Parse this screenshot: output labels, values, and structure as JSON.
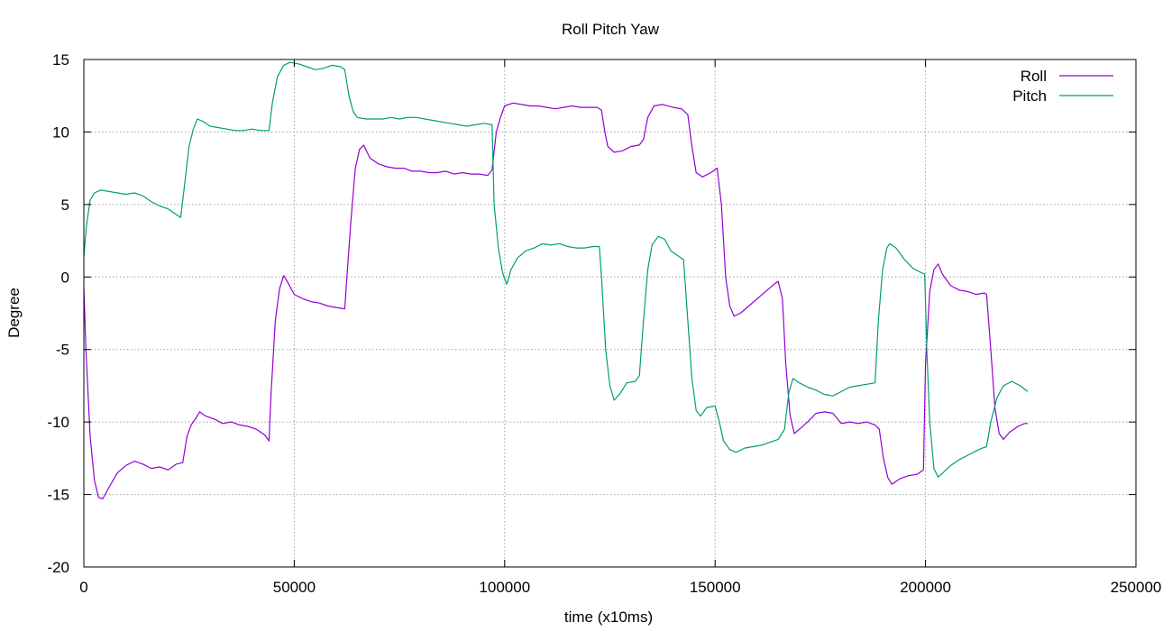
{
  "chart_data": {
    "type": "line",
    "title": "Roll Pitch Yaw",
    "xlabel": "time (x10ms)",
    "ylabel": "Degree",
    "xlim": [
      0,
      250000
    ],
    "ylim": [
      -20,
      15
    ],
    "x_ticks": [
      0,
      50000,
      100000,
      150000,
      200000,
      250000
    ],
    "y_ticks": [
      -20,
      -15,
      -10,
      -5,
      0,
      5,
      10,
      15
    ],
    "grid": true,
    "legend": "top-right",
    "series": [
      {
        "name": "Roll",
        "color": "#9400d3",
        "points": [
          [
            0,
            -0.8
          ],
          [
            500,
            -5
          ],
          [
            1500,
            -11
          ],
          [
            2500,
            -14
          ],
          [
            3500,
            -15.2
          ],
          [
            4500,
            -15.3
          ],
          [
            6000,
            -14.5
          ],
          [
            8000,
            -13.5
          ],
          [
            10000,
            -13.0
          ],
          [
            12000,
            -12.7
          ],
          [
            14000,
            -12.9
          ],
          [
            16000,
            -13.2
          ],
          [
            18000,
            -13.1
          ],
          [
            20000,
            -13.3
          ],
          [
            22000,
            -12.9
          ],
          [
            23500,
            -12.8
          ],
          [
            24500,
            -11.0
          ],
          [
            25500,
            -10.2
          ],
          [
            26500,
            -9.8
          ],
          [
            27500,
            -9.3
          ],
          [
            29000,
            -9.6
          ],
          [
            31000,
            -9.8
          ],
          [
            33000,
            -10.1
          ],
          [
            35000,
            -10.0
          ],
          [
            37000,
            -10.2
          ],
          [
            39000,
            -10.3
          ],
          [
            41000,
            -10.5
          ],
          [
            43000,
            -10.9
          ],
          [
            44000,
            -11.3
          ],
          [
            44500,
            -8
          ],
          [
            45500,
            -3
          ],
          [
            46500,
            -0.8
          ],
          [
            47500,
            0.1
          ],
          [
            48500,
            -0.4
          ],
          [
            50000,
            -1.2
          ],
          [
            52000,
            -1.5
          ],
          [
            54000,
            -1.7
          ],
          [
            56000,
            -1.8
          ],
          [
            58000,
            -2.0
          ],
          [
            60000,
            -2.1
          ],
          [
            62000,
            -2.2
          ],
          [
            62500,
            0
          ],
          [
            63500,
            4
          ],
          [
            64500,
            7.5
          ],
          [
            65500,
            8.8
          ],
          [
            66500,
            9.1
          ],
          [
            68000,
            8.2
          ],
          [
            70000,
            7.8
          ],
          [
            72000,
            7.6
          ],
          [
            74000,
            7.5
          ],
          [
            76000,
            7.5
          ],
          [
            78000,
            7.3
          ],
          [
            80000,
            7.3
          ],
          [
            82000,
            7.2
          ],
          [
            84000,
            7.2
          ],
          [
            86000,
            7.3
          ],
          [
            88000,
            7.1
          ],
          [
            90000,
            7.2
          ],
          [
            92000,
            7.1
          ],
          [
            94000,
            7.1
          ],
          [
            96000,
            7.0
          ],
          [
            97000,
            7.4
          ],
          [
            98000,
            10.0
          ],
          [
            99000,
            11.0
          ],
          [
            100000,
            11.8
          ],
          [
            102000,
            12.0
          ],
          [
            104000,
            11.9
          ],
          [
            106000,
            11.8
          ],
          [
            108000,
            11.8
          ],
          [
            110000,
            11.7
          ],
          [
            112000,
            11.6
          ],
          [
            114000,
            11.7
          ],
          [
            116000,
            11.8
          ],
          [
            118000,
            11.7
          ],
          [
            120000,
            11.7
          ],
          [
            122000,
            11.7
          ],
          [
            123000,
            11.5
          ],
          [
            123800,
            10.0
          ],
          [
            124500,
            9.0
          ],
          [
            126000,
            8.6
          ],
          [
            128000,
            8.7
          ],
          [
            130000,
            9.0
          ],
          [
            132000,
            9.1
          ],
          [
            133000,
            9.5
          ],
          [
            134000,
            11.0
          ],
          [
            135500,
            11.8
          ],
          [
            137500,
            11.9
          ],
          [
            140000,
            11.7
          ],
          [
            142000,
            11.6
          ],
          [
            143500,
            11.2
          ],
          [
            144500,
            9.0
          ],
          [
            145500,
            7.2
          ],
          [
            147000,
            6.9
          ],
          [
            149000,
            7.2
          ],
          [
            150500,
            7.5
          ],
          [
            151500,
            5
          ],
          [
            152500,
            0
          ],
          [
            153500,
            -2
          ],
          [
            154500,
            -2.7
          ],
          [
            156000,
            -2.5
          ],
          [
            158000,
            -2.0
          ],
          [
            160000,
            -1.5
          ],
          [
            162000,
            -1.0
          ],
          [
            164000,
            -0.5
          ],
          [
            165000,
            -0.3
          ],
          [
            166000,
            -1.5
          ],
          [
            166800,
            -6
          ],
          [
            167800,
            -9.5
          ],
          [
            168800,
            -10.8
          ],
          [
            170000,
            -10.5
          ],
          [
            172000,
            -10.0
          ],
          [
            174000,
            -9.4
          ],
          [
            176000,
            -9.3
          ],
          [
            178000,
            -9.4
          ],
          [
            180000,
            -10.1
          ],
          [
            182000,
            -10.0
          ],
          [
            184000,
            -10.1
          ],
          [
            186000,
            -10.0
          ],
          [
            188000,
            -10.2
          ],
          [
            189000,
            -10.5
          ],
          [
            190000,
            -12.5
          ],
          [
            191000,
            -13.8
          ],
          [
            192000,
            -14.3
          ],
          [
            194000,
            -13.9
          ],
          [
            196000,
            -13.7
          ],
          [
            198000,
            -13.6
          ],
          [
            199500,
            -13.3
          ],
          [
            200000,
            -6
          ],
          [
            201000,
            -1
          ],
          [
            202000,
            0.5
          ],
          [
            203000,
            0.9
          ],
          [
            204000,
            0.2
          ],
          [
            206000,
            -0.6
          ],
          [
            208000,
            -0.9
          ],
          [
            210000,
            -1.0
          ],
          [
            212000,
            -1.2
          ],
          [
            214000,
            -1.1
          ],
          [
            214500,
            -1.2
          ],
          [
            215500,
            -5
          ],
          [
            216500,
            -9
          ],
          [
            217500,
            -10.8
          ],
          [
            218500,
            -11.2
          ],
          [
            220000,
            -10.7
          ],
          [
            222000,
            -10.3
          ],
          [
            223500,
            -10.1
          ],
          [
            224300,
            -10.1
          ]
        ]
      },
      {
        "name": "Pitch",
        "color": "#009e73",
        "points": [
          [
            0,
            1.4
          ],
          [
            600,
            3.5
          ],
          [
            1500,
            5.3
          ],
          [
            2500,
            5.8
          ],
          [
            4000,
            6.0
          ],
          [
            6000,
            5.9
          ],
          [
            8000,
            5.8
          ],
          [
            10000,
            5.7
          ],
          [
            12000,
            5.8
          ],
          [
            14000,
            5.6
          ],
          [
            16000,
            5.2
          ],
          [
            18000,
            4.9
          ],
          [
            20000,
            4.7
          ],
          [
            22000,
            4.3
          ],
          [
            23000,
            4.1
          ],
          [
            24000,
            6.5
          ],
          [
            25000,
            9.0
          ],
          [
            26000,
            10.2
          ],
          [
            27000,
            10.9
          ],
          [
            28500,
            10.7
          ],
          [
            30000,
            10.4
          ],
          [
            32000,
            10.3
          ],
          [
            34000,
            10.2
          ],
          [
            36000,
            10.1
          ],
          [
            38000,
            10.1
          ],
          [
            40000,
            10.2
          ],
          [
            42000,
            10.1
          ],
          [
            44000,
            10.1
          ],
          [
            44800,
            12.0
          ],
          [
            46000,
            13.8
          ],
          [
            47500,
            14.6
          ],
          [
            49000,
            14.8
          ],
          [
            51000,
            14.7
          ],
          [
            53000,
            14.5
          ],
          [
            55000,
            14.3
          ],
          [
            57000,
            14.4
          ],
          [
            59000,
            14.6
          ],
          [
            61000,
            14.5
          ],
          [
            62000,
            14.3
          ],
          [
            63000,
            12.5
          ],
          [
            64000,
            11.4
          ],
          [
            65000,
            11.0
          ],
          [
            67000,
            10.9
          ],
          [
            69000,
            10.9
          ],
          [
            71000,
            10.9
          ],
          [
            73000,
            11.0
          ],
          [
            75000,
            10.9
          ],
          [
            77000,
            11.0
          ],
          [
            79000,
            11.0
          ],
          [
            81000,
            10.9
          ],
          [
            83000,
            10.8
          ],
          [
            85000,
            10.7
          ],
          [
            87000,
            10.6
          ],
          [
            89000,
            10.5
          ],
          [
            91000,
            10.4
          ],
          [
            93000,
            10.5
          ],
          [
            95000,
            10.6
          ],
          [
            97000,
            10.5
          ],
          [
            97500,
            5
          ],
          [
            98500,
            2.0
          ],
          [
            99500,
            0.3
          ],
          [
            100500,
            -0.5
          ],
          [
            101500,
            0.5
          ],
          [
            103000,
            1.3
          ],
          [
            105000,
            1.8
          ],
          [
            107000,
            2.0
          ],
          [
            109000,
            2.3
          ],
          [
            111000,
            2.2
          ],
          [
            113000,
            2.3
          ],
          [
            115000,
            2.1
          ],
          [
            117000,
            2.0
          ],
          [
            119000,
            2.0
          ],
          [
            121000,
            2.1
          ],
          [
            122500,
            2.1
          ],
          [
            123000,
            0
          ],
          [
            124000,
            -5
          ],
          [
            125000,
            -7.5
          ],
          [
            126000,
            -8.5
          ],
          [
            127500,
            -8.0
          ],
          [
            129000,
            -7.3
          ],
          [
            131000,
            -7.2
          ],
          [
            132000,
            -6.8
          ],
          [
            133000,
            -3
          ],
          [
            134000,
            0.5
          ],
          [
            135000,
            2.2
          ],
          [
            136500,
            2.8
          ],
          [
            138000,
            2.6
          ],
          [
            139500,
            1.8
          ],
          [
            141000,
            1.5
          ],
          [
            142500,
            1.2
          ],
          [
            143500,
            -3
          ],
          [
            144500,
            -7
          ],
          [
            145500,
            -9.2
          ],
          [
            146500,
            -9.6
          ],
          [
            148000,
            -9.0
          ],
          [
            150000,
            -8.9
          ],
          [
            151000,
            -10.0
          ],
          [
            152000,
            -11.3
          ],
          [
            153500,
            -11.9
          ],
          [
            155000,
            -12.1
          ],
          [
            157000,
            -11.8
          ],
          [
            159000,
            -11.7
          ],
          [
            161000,
            -11.6
          ],
          [
            163000,
            -11.4
          ],
          [
            165000,
            -11.2
          ],
          [
            166500,
            -10.5
          ],
          [
            167500,
            -8.0
          ],
          [
            168500,
            -7.0
          ],
          [
            170000,
            -7.3
          ],
          [
            172000,
            -7.6
          ],
          [
            174000,
            -7.8
          ],
          [
            176000,
            -8.1
          ],
          [
            178000,
            -8.2
          ],
          [
            180000,
            -7.9
          ],
          [
            182000,
            -7.6
          ],
          [
            184000,
            -7.5
          ],
          [
            186000,
            -7.4
          ],
          [
            188000,
            -7.3
          ],
          [
            188800,
            -3
          ],
          [
            189800,
            0.5
          ],
          [
            190800,
            2.0
          ],
          [
            191500,
            2.3
          ],
          [
            193000,
            2.0
          ],
          [
            195000,
            1.2
          ],
          [
            197000,
            0.6
          ],
          [
            199000,
            0.3
          ],
          [
            199800,
            0.2
          ],
          [
            200300,
            -5
          ],
          [
            201000,
            -10
          ],
          [
            202000,
            -13.2
          ],
          [
            203000,
            -13.8
          ],
          [
            204500,
            -13.4
          ],
          [
            206000,
            -13.0
          ],
          [
            208000,
            -12.6
          ],
          [
            210000,
            -12.3
          ],
          [
            212000,
            -12.0
          ],
          [
            213500,
            -11.8
          ],
          [
            214500,
            -11.7
          ],
          [
            215500,
            -10.0
          ],
          [
            217000,
            -8.3
          ],
          [
            218500,
            -7.5
          ],
          [
            220500,
            -7.2
          ],
          [
            222500,
            -7.5
          ],
          [
            224300,
            -7.9
          ]
        ]
      }
    ]
  }
}
